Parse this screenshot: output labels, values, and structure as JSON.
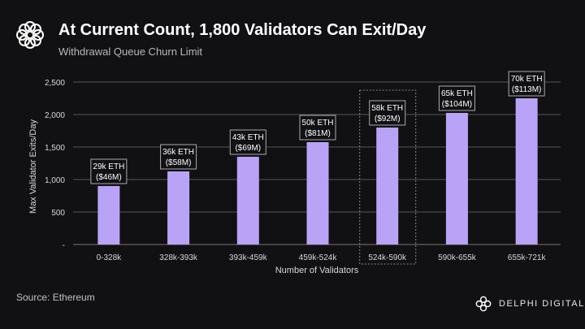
{
  "header": {
    "title": "At Current Count, 1,800 Validators Can Exit/Day",
    "subtitle": "Withdrawal Queue Churn Limit",
    "logo_icon": "delphi-flower-icon"
  },
  "footer": {
    "source": "Source: Ethereum",
    "brand": "DELPHI DIGITAL"
  },
  "chart_data": {
    "type": "bar",
    "title": "At Current Count, 1,800 Validators Can Exit/Day",
    "xlabel": "Number of Validators",
    "ylabel": "Max Validator Exits/Day",
    "ylim": [
      0,
      2500
    ],
    "yticks": [
      0,
      500,
      1000,
      1500,
      2000,
      2500
    ],
    "ytick_labels": [
      "-",
      "500",
      "1,000",
      "1,500",
      "2,000",
      "2,500"
    ],
    "grid": true,
    "bar_color": "#b9a3f6",
    "categories": [
      "0-328k",
      "328k-393k",
      "393k-459k",
      "459k-524k",
      "524k-590k",
      "590k-655k",
      "655k-721k"
    ],
    "values": [
      900,
      1125,
      1350,
      1575,
      1800,
      2025,
      2250
    ],
    "labels_eth": [
      "29k ETH",
      "36k ETH",
      "43k ETH",
      "50k ETH",
      "58k ETH",
      "65k ETH",
      "70k ETH"
    ],
    "labels_usd": [
      "($46M)",
      "($58M)",
      "($69M)",
      "($81M)",
      "($92M)",
      "($104M)",
      "($113M)"
    ],
    "highlight_index": 4
  }
}
